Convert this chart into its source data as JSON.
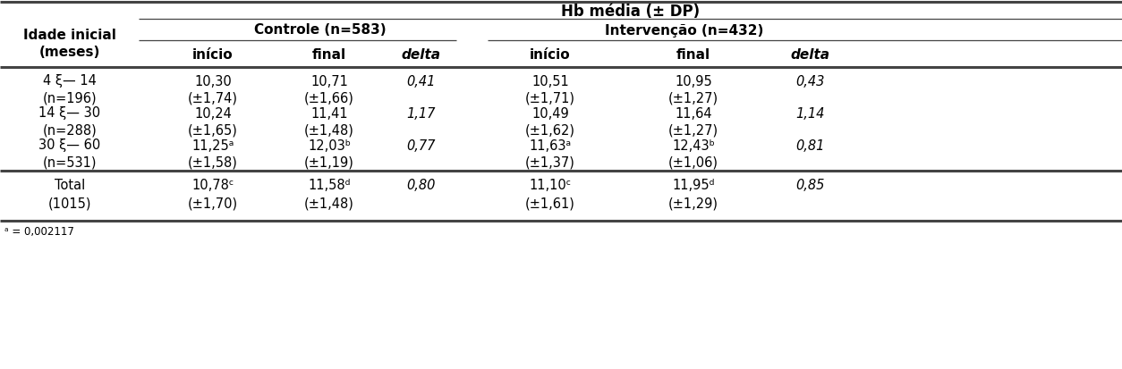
{
  "title": "Hb média (± DP)",
  "col_header_1": "Controle (n=583)",
  "col_header_2": "Intervenção (n=432)",
  "sub_headers": [
    "início",
    "final",
    "delta",
    "início",
    "final",
    "delta"
  ],
  "row_header": "Idade inicial\n(meses)",
  "rows": [
    {
      "label_line1": "4 ξ— 14",
      "label_line2": "(n=196)",
      "c_inicio": "10,30",
      "c_inicio_sd": "(±1,74)",
      "c_final": "10,71",
      "c_final_sd": "(±1,66)",
      "c_delta": "0,41",
      "i_inicio": "10,51",
      "i_inicio_sd": "(±1,71)",
      "i_final": "10,95",
      "i_final_sd": "(±1,27)",
      "i_delta": "0,43"
    },
    {
      "label_line1": "14 ξ— 30",
      "label_line2": "(n=288)",
      "c_inicio": "10,24",
      "c_inicio_sd": "(±1,65)",
      "c_final": "11,41",
      "c_final_sd": "(±1,48)",
      "c_delta": "1,17",
      "i_inicio": "10,49",
      "i_inicio_sd": "(±1,62)",
      "i_final": "11,64",
      "i_final_sd": "(±1,27)",
      "i_delta": "1,14"
    },
    {
      "label_line1": "30 ξ— 60",
      "label_line2": "(n=531)",
      "c_inicio": "11,25ᵃ",
      "c_inicio_sd": "(±1,58)",
      "c_final": "12,03ᵇ",
      "c_final_sd": "(±1,19)",
      "c_delta": "0,77",
      "i_inicio": "11,63ᵃ",
      "i_inicio_sd": "(±1,37)",
      "i_final": "12,43ᵇ",
      "i_final_sd": "(±1,06)",
      "i_delta": "0,81"
    }
  ],
  "total_row": {
    "label_line1": "Total",
    "label_line2": "(1015)",
    "c_inicio": "10,78ᶜ",
    "c_inicio_sd": "(±1,70)",
    "c_final": "11,58ᵈ",
    "c_final_sd": "(±1,48)",
    "c_delta": "0,80",
    "i_inicio": "11,10ᶜ",
    "i_inicio_sd": "(±1,61)",
    "i_final": "11,95ᵈ",
    "i_final_sd": "(±1,29)",
    "i_delta": "0,85"
  },
  "footnote": "ᵃ = 0,002117",
  "bg_color": "#ffffff",
  "text_color": "#000000"
}
